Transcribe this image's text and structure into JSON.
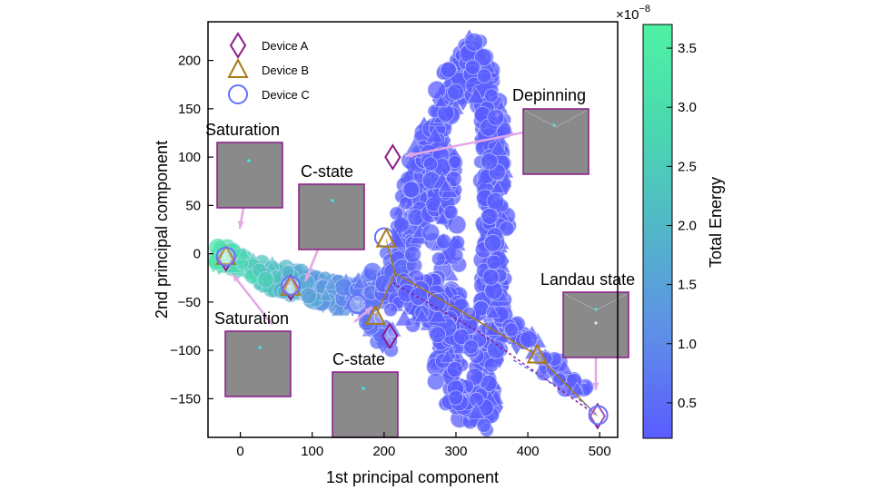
{
  "chart_data": {
    "type": "scatter",
    "xlabel": "1st principal component",
    "ylabel": "2nd principal component",
    "xlim": [
      -45,
      525
    ],
    "ylim": [
      -190,
      240
    ],
    "xticks": [
      0,
      100,
      200,
      300,
      400,
      500
    ],
    "yticks": [
      -150,
      -100,
      -50,
      0,
      50,
      100,
      150,
      200
    ],
    "grid": false,
    "legend_position": "top-left",
    "legend": [
      {
        "label": "Device A",
        "marker": "diamond",
        "color": "#8b1a8b"
      },
      {
        "label": "Device B",
        "marker": "triangle",
        "color": "#a87b1a"
      },
      {
        "label": "Device C",
        "marker": "circle",
        "color": "#6670ff"
      }
    ],
    "colorbar": {
      "label": "Total Energy",
      "multiplier": "×10",
      "exponent": "−8",
      "min": 0.2,
      "max": 3.7,
      "ticks": [
        "0.5",
        "1.0",
        "1.5",
        "2.0",
        "2.5",
        "3.0",
        "3.5"
      ],
      "tick_values": [
        0.5,
        1.0,
        1.5,
        2.0,
        2.5,
        3.0,
        3.5
      ],
      "colors": [
        "#5a5cff",
        "#5f8ee8",
        "#52b6c8",
        "#4ad8b0",
        "#4ff2a4"
      ]
    },
    "highlighted_points": [
      {
        "device": "A",
        "x": -20,
        "y": -5
      },
      {
        "device": "B",
        "x": -20,
        "y": -3
      },
      {
        "device": "C",
        "x": -20,
        "y": -3
      },
      {
        "device": "A",
        "x": 70,
        "y": -35
      },
      {
        "device": "B",
        "x": 70,
        "y": -35
      },
      {
        "device": "C",
        "x": 70,
        "y": -33
      },
      {
        "device": "C",
        "x": 163,
        "y": -52
      },
      {
        "device": "B",
        "x": 188,
        "y": -65
      },
      {
        "device": "A",
        "x": 208,
        "y": -85
      },
      {
        "device": "C",
        "x": 200,
        "y": 17
      },
      {
        "device": "B",
        "x": 203,
        "y": 15
      },
      {
        "device": "A",
        "x": 212,
        "y": 100
      },
      {
        "device": "B",
        "x": 413,
        "y": -105
      },
      {
        "device": "A",
        "x": 497,
        "y": -168
      },
      {
        "device": "C",
        "x": 498,
        "y": -167
      }
    ],
    "annotations": [
      {
        "label": "Saturation",
        "target": [
          -20,
          -5
        ]
      },
      {
        "label": "C-state",
        "target": [
          70,
          -35
        ]
      },
      {
        "label": "Saturation",
        "target": [
          -20,
          -5
        ]
      },
      {
        "label": "C-state",
        "target": [
          188,
          -65
        ]
      },
      {
        "label": "Depinning",
        "target": [
          212,
          100
        ]
      },
      {
        "label": "Landau state",
        "target": [
          497,
          -168
        ]
      }
    ]
  }
}
